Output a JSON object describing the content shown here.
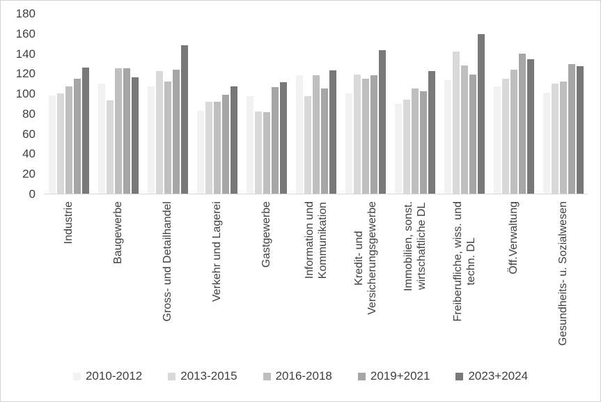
{
  "chart_data": {
    "type": "bar",
    "title": "",
    "xlabel": "",
    "ylabel": "",
    "ylim": [
      0,
      180
    ],
    "yticks": [
      0,
      20,
      40,
      60,
      80,
      100,
      120,
      140,
      160,
      180
    ],
    "grid": false,
    "legend_position": "bottom",
    "axis_color": "#d9d9d9",
    "text_color": "#3f3f3f",
    "categories": [
      "Industrie",
      "Baugewerbe",
      "Gross- und Detailhandel",
      "Verkehr und Lagerei",
      "Gastgewerbe",
      "Information und\nKommunikation",
      "Kredit- und\nVersicherungsgewerbe",
      "Immobilien, sonst.\nwirtschaftliche DL",
      "Freiberufliche, wiss. und\ntechn. DL",
      "Öff.Verwaltung",
      "Gesundheits- u. Sozialwesen"
    ],
    "series": [
      {
        "name": "2010-2012",
        "color": "#f2f2f2",
        "values": [
          98,
          110,
          107,
          83,
          97,
          118,
          100,
          90,
          113,
          107,
          101
        ]
      },
      {
        "name": "2013-2015",
        "color": "#d9d9d9",
        "values": [
          100,
          93,
          122,
          92,
          82,
          97,
          119,
          94,
          142,
          115,
          110
        ]
      },
      {
        "name": "2016-2018",
        "color": "#bfbfbf",
        "values": [
          107,
          125,
          112,
          92,
          81,
          118,
          115,
          105,
          128,
          124,
          112
        ]
      },
      {
        "name": "2019+2021",
        "color": "#a6a6a6",
        "values": [
          115,
          125,
          124,
          99,
          106,
          105,
          118,
          102,
          119,
          140,
          129
        ]
      },
      {
        "name": "2023+2024",
        "color": "#787878",
        "values": [
          126,
          116,
          148,
          107,
          111,
          123,
          143,
          122,
          159,
          134,
          127
        ]
      }
    ]
  }
}
